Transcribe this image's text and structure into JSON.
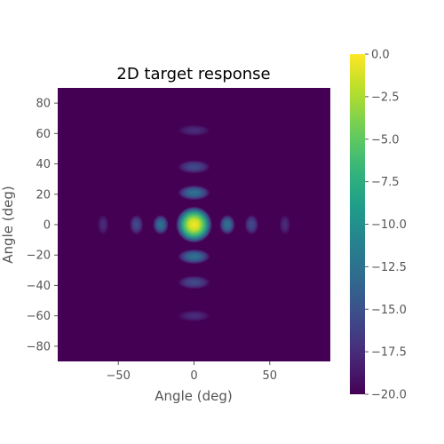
{
  "chart_data": {
    "type": "heatmap",
    "title": "2D target response",
    "xlabel": "Angle (deg)",
    "ylabel": "Angle (deg)",
    "xlim": [
      -90,
      90
    ],
    "ylim": [
      -90,
      90
    ],
    "xticks": [
      -50,
      0,
      50
    ],
    "yticks": [
      -80,
      -60,
      -40,
      -20,
      0,
      20,
      40,
      60,
      80
    ],
    "colorbar": {
      "colormap": "viridis",
      "range": [
        -20.0,
        0.0
      ],
      "ticks": [
        0.0,
        -2.5,
        -5.0,
        -7.5,
        -10.0,
        -12.5,
        -15.0,
        -17.5,
        -20.0
      ],
      "tick_labels": [
        "0.0",
        "−2.5",
        "−5.0",
        "−7.5",
        "−10.0",
        "−12.5",
        "−15.0",
        "−17.5",
        "−20.0"
      ]
    },
    "peak": {
      "x": 0,
      "y": 0,
      "value_db": 0.0
    },
    "lobes": [
      {
        "x": 0,
        "y": 0,
        "value_db": 0.0
      },
      {
        "x": 22,
        "y": 0,
        "value_db": -12.5
      },
      {
        "x": -22,
        "y": 0,
        "value_db": -12.5
      },
      {
        "x": 38,
        "y": 0,
        "value_db": -15.5
      },
      {
        "x": -38,
        "y": 0,
        "value_db": -15.5
      },
      {
        "x": 60,
        "y": 0,
        "value_db": -17.5
      },
      {
        "x": -60,
        "y": 0,
        "value_db": -17.5
      },
      {
        "x": 0,
        "y": 21,
        "value_db": -12.5
      },
      {
        "x": 0,
        "y": -21,
        "value_db": -12.5
      },
      {
        "x": 0,
        "y": 38,
        "value_db": -15.5
      },
      {
        "x": 0,
        "y": -38,
        "value_db": -15.5
      },
      {
        "x": 0,
        "y": 62,
        "value_db": -17.5
      },
      {
        "x": 0,
        "y": -60,
        "value_db": -17.5
      }
    ],
    "grid": false
  }
}
